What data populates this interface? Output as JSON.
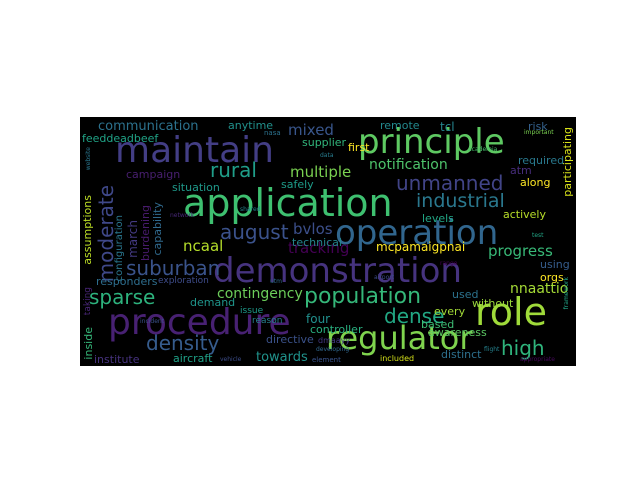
{
  "colors": {
    "background": "#000000",
    "page": "#ffffff",
    "palette": [
      "#440154",
      "#46327e",
      "#365c8d",
      "#277f8e",
      "#1fa187",
      "#4ac16d",
      "#a0da39",
      "#fde725"
    ]
  },
  "words": [
    {
      "text": "demonstration",
      "color": "#46337f"
    },
    {
      "text": "application",
      "color": "#3ec070"
    },
    {
      "text": "procedure",
      "color": "#482173"
    },
    {
      "text": "maintain",
      "color": "#433e85"
    },
    {
      "text": "principle",
      "color": "#5ec962"
    },
    {
      "text": "operation",
      "color": "#31668e"
    },
    {
      "text": "regulator",
      "color": "#7fd34e"
    },
    {
      "text": "role",
      "color": "#9fda3a"
    },
    {
      "text": "population",
      "color": "#35b779"
    },
    {
      "text": "unmanned",
      "color": "#414487"
    },
    {
      "text": "industrial",
      "color": "#2a788e"
    },
    {
      "text": "august",
      "color": "#3b528b"
    },
    {
      "text": "suburban",
      "color": "#3a538b"
    },
    {
      "text": "sparse",
      "color": "#2db27d"
    },
    {
      "text": "density",
      "color": "#365c8d"
    },
    {
      "text": "dense",
      "color": "#22a884"
    },
    {
      "text": "high",
      "color": "#2fb47c"
    },
    {
      "text": "rural",
      "color": "#1f9e89"
    },
    {
      "text": "moderate",
      "color": "#3f4889"
    },
    {
      "text": "mixed",
      "color": "#39568c"
    },
    {
      "text": "multiple",
      "color": "#7ad151"
    },
    {
      "text": "notification",
      "color": "#4ec36b"
    },
    {
      "text": "communication",
      "color": "#2c728e"
    },
    {
      "text": "contingency",
      "color": "#6ccd5a"
    },
    {
      "text": "tracking",
      "color": "#440154"
    },
    {
      "text": "progress",
      "color": "#38b977"
    },
    {
      "text": "ncaal",
      "color": "#b5de2b"
    },
    {
      "text": "bvlos",
      "color": "#3c4f8a"
    },
    {
      "text": "nnaattio",
      "color": "#a5db36"
    },
    {
      "text": "mcpamaigpnai",
      "color": "#fde725"
    },
    {
      "text": "technical",
      "color": "#25858e"
    },
    {
      "text": "towards",
      "color": "#20938c"
    },
    {
      "text": "four",
      "color": "#21908d"
    },
    {
      "text": "directive",
      "color": "#3b528b"
    },
    {
      "text": "controller",
      "color": "#29af7f"
    },
    {
      "text": "aircraft",
      "color": "#1fa187"
    },
    {
      "text": "institute",
      "color": "#46327e"
    },
    {
      "text": "distinct",
      "color": "#2d708e"
    },
    {
      "text": "awareness",
      "color": "#5cc863"
    },
    {
      "text": "based",
      "color": "#3dbc74"
    },
    {
      "text": "every",
      "color": "#a2da37"
    },
    {
      "text": "used",
      "color": "#2c728e"
    },
    {
      "text": "without",
      "color": "#9bd93c"
    },
    {
      "text": "orgs",
      "color": "#fde725"
    },
    {
      "text": "using",
      "color": "#365d8d"
    },
    {
      "text": "supplier",
      "color": "#31b57b"
    },
    {
      "text": "first",
      "color": "#fde725"
    },
    {
      "text": "safely",
      "color": "#1e9c89"
    },
    {
      "text": "situation",
      "color": "#1f998a"
    },
    {
      "text": "campaign",
      "color": "#481f70"
    },
    {
      "text": "march",
      "color": "#443a83"
    },
    {
      "text": "burdening",
      "color": "#481b6d"
    },
    {
      "text": "capability",
      "color": "#306a8e"
    },
    {
      "text": "configuration",
      "color": "#2a778e"
    },
    {
      "text": "assumptions",
      "color": "#bddf26"
    },
    {
      "text": "responders",
      "color": "#2e6e8e"
    },
    {
      "text": "exploration",
      "color": "#3e4c8a"
    },
    {
      "text": "demand",
      "color": "#1f958b"
    },
    {
      "text": "inside",
      "color": "#35b779"
    },
    {
      "text": "taking",
      "color": "#482677"
    },
    {
      "text": "anytime",
      "color": "#21918c"
    },
    {
      "text": "remote",
      "color": "#23898e"
    },
    {
      "text": "tcl",
      "color": "#25848e"
    },
    {
      "text": "risk",
      "color": "#34618d"
    },
    {
      "text": "required",
      "color": "#29798e"
    },
    {
      "text": "atm",
      "color": "#472d7b"
    },
    {
      "text": "along",
      "color": "#fde725"
    },
    {
      "text": "actively",
      "color": "#b8de29"
    },
    {
      "text": "participating",
      "color": "#d8e219"
    },
    {
      "text": "levels",
      "color": "#22a785"
    },
    {
      "text": "issue",
      "color": "#1f9a8a"
    },
    {
      "text": "reason",
      "color": "#277f8e"
    },
    {
      "text": "included",
      "color": "#d5e21a"
    },
    {
      "text": "feeddeadbeef",
      "color": "#20a386"
    },
    {
      "text": "nasa",
      "color": "#2c728e"
    },
    {
      "text": "element",
      "color": "#3a548c"
    },
    {
      "text": "framework",
      "color": "#20a486"
    },
    {
      "text": "appropriate",
      "color": "#46085c"
    },
    {
      "text": "developing",
      "color": "#31688e"
    },
    {
      "text": "incident",
      "color": "#3b528b"
    },
    {
      "text": "website",
      "color": "#2a768e"
    },
    {
      "text": "network",
      "color": "#482878"
    },
    {
      "text": "dmaayy",
      "color": "#443983"
    },
    {
      "text": "utm",
      "color": "#2f6c8e"
    },
    {
      "text": "academia",
      "color": "#4ac16d"
    },
    {
      "text": "important",
      "color": "#7ad151"
    },
    {
      "text": "test",
      "color": "#21a585"
    },
    {
      "text": "data",
      "color": "#287c8e"
    },
    {
      "text": "airport",
      "color": "#3e4a89"
    },
    {
      "text": "shared",
      "color": "#24878e"
    },
    {
      "text": "range",
      "color": "#440154"
    },
    {
      "text": "flight",
      "color": "#26828e"
    },
    {
      "text": "vehicle",
      "color": "#3d4d8a"
    }
  ]
}
